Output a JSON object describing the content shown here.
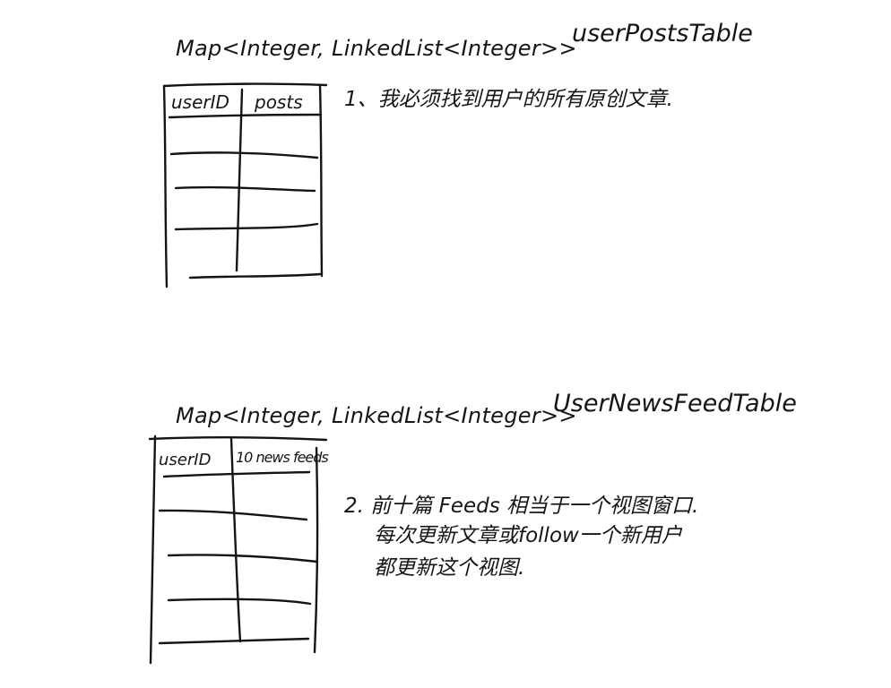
{
  "table1": {
    "type_label": "Map<Integer, LinkedList<Integer>>",
    "name": "userPostsTable",
    "columns": [
      "userID",
      "posts"
    ]
  },
  "note1": "1、我必须找到用户的所有原创文章.",
  "table2": {
    "type_label": "Map<Integer, LinkedList<Integer>>",
    "name": "UserNewsFeedTable",
    "columns": [
      "userID",
      "10 news feeds"
    ]
  },
  "note2": {
    "line1": "2. 前十篇 Feeds 相当于一个视图窗口.",
    "line2": "每次更新文章或follow一个新用户",
    "line3": "都更新这个视图."
  }
}
